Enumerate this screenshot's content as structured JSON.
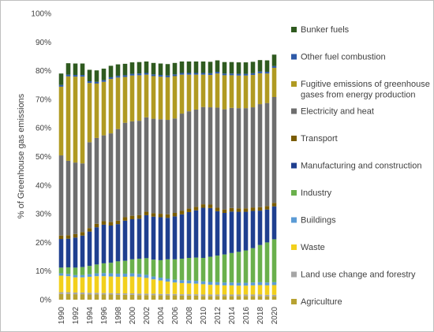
{
  "chart_data": {
    "type": "bar",
    "stacked": true,
    "title": "",
    "xlabel": "",
    "ylabel": "% of Greenhouse gas emissions",
    "ylim": [
      0,
      100
    ],
    "yticks": [
      "0%",
      "10%",
      "20%",
      "30%",
      "40%",
      "50%",
      "60%",
      "70%",
      "80%",
      "90%",
      "100%"
    ],
    "grid": false,
    "legend_position": "right",
    "x": [
      1990,
      1991,
      1992,
      1993,
      1994,
      1995,
      1996,
      1997,
      1998,
      1999,
      2000,
      2001,
      2002,
      2003,
      2004,
      2005,
      2006,
      2007,
      2008,
      2009,
      2010,
      2011,
      2012,
      2013,
      2014,
      2015,
      2016,
      2017,
      2018,
      2019,
      2020
    ],
    "xtick_labels": [
      "1990",
      "1992",
      "1994",
      "1996",
      "1998",
      "2000",
      "2002",
      "2004",
      "2006",
      "2008",
      "2010",
      "2012",
      "2014",
      "2016",
      "2018",
      "2020"
    ],
    "series": [
      {
        "name": "Agriculture",
        "color": "#b7a232",
        "values": [
          2.0,
          2.0,
          1.9,
          1.9,
          1.8,
          1.8,
          1.8,
          1.8,
          1.7,
          1.7,
          1.7,
          1.6,
          1.6,
          1.6,
          1.5,
          1.5,
          1.5,
          1.4,
          1.4,
          1.4,
          1.3,
          1.3,
          1.3,
          1.3,
          1.3,
          1.3,
          1.3,
          1.3,
          1.3,
          1.2,
          1.2
        ]
      },
      {
        "name": "Land use change and forestry",
        "color": "#a6a6a6",
        "values": [
          0.6,
          0.6,
          0.6,
          0.6,
          0.6,
          0.6,
          0.5,
          0.5,
          0.5,
          0.5,
          0.5,
          0.5,
          0.5,
          0.5,
          0.5,
          0.5,
          0.5,
          0.5,
          0.5,
          0.5,
          0.5,
          0.5,
          0.5,
          0.5,
          0.5,
          0.5,
          0.5,
          0.5,
          0.5,
          0.5,
          0.5
        ]
      },
      {
        "name": "Waste",
        "color": "#f2d01c",
        "values": [
          5.8,
          5.6,
          5.3,
          5.3,
          5.6,
          5.8,
          5.9,
          5.8,
          5.8,
          5.8,
          5.9,
          5.8,
          5.5,
          5.0,
          4.7,
          4.3,
          4.0,
          3.9,
          3.8,
          3.7,
          3.6,
          3.4,
          3.3,
          3.2,
          3.2,
          3.1,
          3.1,
          3.2,
          3.3,
          3.3,
          3.4
        ]
      },
      {
        "name": "Buildings",
        "color": "#5b9bd5",
        "values": [
          0.8,
          0.8,
          0.8,
          0.8,
          0.9,
          1.0,
          1.1,
          1.1,
          1.1,
          1.1,
          1.1,
          1.1,
          1.1,
          1.0,
          1.0,
          1.0,
          1.0,
          1.0,
          1.0,
          1.0,
          1.0,
          1.0,
          1.0,
          1.0,
          1.0,
          1.0,
          1.0,
          1.0,
          1.0,
          1.0,
          1.0
        ]
      },
      {
        "name": "Industry",
        "color": "#6ab04c",
        "values": [
          2.0,
          2.3,
          2.6,
          2.8,
          2.9,
          3.1,
          3.4,
          3.7,
          4.3,
          4.5,
          4.9,
          5.3,
          5.8,
          5.9,
          6.1,
          6.8,
          7.1,
          7.5,
          7.9,
          8.1,
          8.2,
          8.8,
          9.3,
          9.8,
          10.3,
          10.8,
          11.3,
          12.0,
          13.0,
          14.0,
          15.0
        ]
      },
      {
        "name": "Manufacturing and construction",
        "color": "#1f3f8f",
        "values": [
          10.0,
          10.0,
          10.5,
          11.0,
          12.0,
          13.0,
          13.5,
          13.0,
          13.0,
          14.0,
          14.0,
          14.0,
          15.0,
          15.0,
          15.0,
          14.5,
          15.0,
          15.5,
          16.0,
          16.5,
          17.5,
          17.0,
          15.5,
          14.5,
          14.5,
          14.0,
          13.5,
          13.0,
          12.0,
          11.5,
          11.5
        ]
      },
      {
        "name": "Transport",
        "color": "#7a5c00",
        "values": [
          1.2,
          1.2,
          1.2,
          1.2,
          1.2,
          1.2,
          1.2,
          1.2,
          1.2,
          1.2,
          1.2,
          1.2,
          1.2,
          1.2,
          1.2,
          1.2,
          1.2,
          1.2,
          1.2,
          1.2,
          1.2,
          1.2,
          1.2,
          1.2,
          1.2,
          1.2,
          1.2,
          1.2,
          1.2,
          1.2,
          1.2
        ]
      },
      {
        "name": "Electricity and heat",
        "color": "#6e6e6e",
        "values": [
          28.0,
          26.0,
          25.0,
          24.0,
          30.0,
          30.0,
          30.0,
          31.0,
          32.0,
          33.0,
          33.0,
          33.0,
          33.0,
          33.0,
          33.0,
          33.0,
          33.0,
          34.0,
          34.0,
          34.0,
          34.0,
          34.0,
          35.0,
          35.0,
          35.0,
          35.0,
          35.0,
          35.0,
          36.0,
          36.0,
          37.0
        ]
      },
      {
        "name": "Fugitive emissions of greenhouse gases from energy production",
        "color": "#b09a22",
        "values": [
          24.0,
          29.5,
          30.0,
          30.3,
          20.7,
          19.0,
          18.7,
          19.0,
          18.0,
          16.0,
          16.0,
          15.9,
          14.9,
          14.9,
          14.9,
          14.9,
          14.8,
          13.6,
          12.8,
          12.2,
          11.3,
          11.3,
          11.9,
          11.9,
          11.4,
          11.4,
          11.4,
          11.3,
          10.8,
          10.3,
          10.2
        ]
      },
      {
        "name": "Other fuel combustion",
        "color": "#2e5aa8",
        "values": [
          0.6,
          0.6,
          0.6,
          0.6,
          0.6,
          0.6,
          0.6,
          0.6,
          0.6,
          0.6,
          0.6,
          0.6,
          0.6,
          0.6,
          0.6,
          0.6,
          0.6,
          0.6,
          0.6,
          0.6,
          0.6,
          0.6,
          0.6,
          0.6,
          0.6,
          0.6,
          0.6,
          0.6,
          0.6,
          0.6,
          0.6
        ]
      },
      {
        "name": "Bunker fuels",
        "color": "#2f5a1f",
        "values": [
          4.0,
          4.0,
          4.0,
          4.0,
          4.0,
          4.0,
          4.0,
          4.0,
          4.0,
          4.0,
          4.0,
          4.0,
          4.0,
          4.0,
          4.0,
          4.0,
          4.0,
          4.0,
          4.0,
          4.0,
          4.0,
          4.0,
          4.0,
          4.0,
          4.0,
          4.0,
          4.0,
          4.0,
          4.0,
          4.0,
          4.0
        ]
      }
    ],
    "legend": [
      {
        "lines": [
          "Bunker fuels"
        ],
        "color": "#2f5a1f"
      },
      {
        "lines": [
          "Other fuel combustion"
        ],
        "color": "#2e5aa8"
      },
      {
        "lines": [
          "Fugitive emissions of greenhouse",
          "gases from energy production"
        ],
        "color": "#b09a22"
      },
      {
        "lines": [
          "Electricity and heat"
        ],
        "color": "#6e6e6e"
      },
      {
        "lines": [
          "Transport"
        ],
        "color": "#7a5c00"
      },
      {
        "lines": [
          "Manufacturing and construction"
        ],
        "color": "#1f3f8f"
      },
      {
        "lines": [
          "Industry"
        ],
        "color": "#6ab04c"
      },
      {
        "lines": [
          "Buildings"
        ],
        "color": "#5b9bd5"
      },
      {
        "lines": [
          "Waste"
        ],
        "color": "#f2d01c"
      },
      {
        "lines": [
          "Land use change and forestry"
        ],
        "color": "#a6a6a6"
      },
      {
        "lines": [
          "Agriculture"
        ],
        "color": "#b7a232"
      }
    ]
  }
}
